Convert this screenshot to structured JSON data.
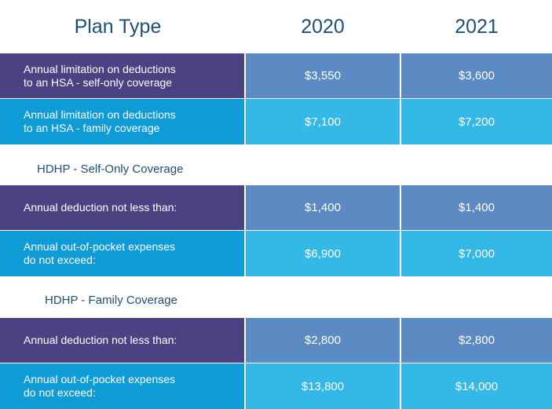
{
  "header": {
    "plan_type": "Plan Type",
    "year1": "2020",
    "year2": "2021"
  },
  "rows": [
    {
      "label": "Annual limitation on deductions\nto an HSA  -  self-only coverage",
      "v2020": "$3,550",
      "v2021": "$3,600"
    },
    {
      "label": "Annual limitation on deductions\nto an HSA  -  family coverage",
      "v2020": "$7,100",
      "v2021": "$7,200"
    },
    {
      "label": "Annual deduction not less than:",
      "v2020": "$1,400",
      "v2021": "$1,400"
    },
    {
      "label": "Annual out-of-pocket expenses\ndo not exceed:",
      "v2020": "$6,900",
      "v2021": "$7,000"
    },
    {
      "label": "Annual deduction not less than:",
      "v2020": "$2,800",
      "v2021": "$2,800"
    },
    {
      "label": "Annual out-of-pocket expenses\ndo not exceed:",
      "v2020": "$13,800",
      "v2021": "$14,000"
    }
  ],
  "sections": {
    "self_only": "HDHP  -  Self-Only Coverage",
    "family": "HDHP  -  Family Coverage"
  },
  "colors": {
    "label_dark": "#4b4283",
    "value_dark": "#5b8bc2",
    "label_light": "#0f9bd5",
    "value_light": "#34b8e8",
    "heading": "#1f4e79"
  }
}
